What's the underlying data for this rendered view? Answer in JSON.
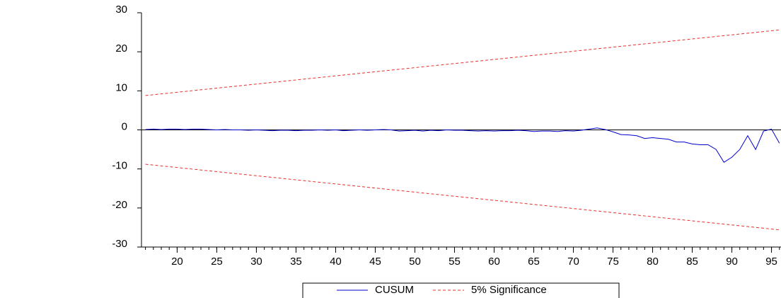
{
  "chart_data": {
    "type": "line",
    "series": [
      {
        "name": "CUSUM",
        "color": "#0000cc",
        "dash": false,
        "x": [
          16,
          17,
          18,
          19,
          20,
          21,
          22,
          23,
          24,
          25,
          26,
          27,
          28,
          29,
          30,
          31,
          32,
          33,
          34,
          35,
          36,
          37,
          38,
          39,
          40,
          41,
          42,
          43,
          44,
          45,
          46,
          47,
          48,
          49,
          50,
          51,
          52,
          53,
          54,
          55,
          56,
          57,
          58,
          59,
          60,
          61,
          62,
          63,
          64,
          65,
          66,
          67,
          68,
          69,
          70,
          71,
          72,
          73,
          74,
          75,
          76,
          77,
          78,
          79,
          80,
          81,
          82,
          83,
          84,
          85,
          86,
          87,
          88,
          89,
          90,
          91,
          92,
          93,
          94,
          95,
          96
        ],
        "values": [
          0.1,
          0.2,
          0.1,
          0.2,
          0.2,
          0.1,
          0.2,
          0.2,
          0.1,
          0.0,
          0.1,
          0.0,
          0.0,
          -0.1,
          0.0,
          -0.1,
          -0.2,
          -0.1,
          -0.1,
          -0.2,
          -0.1,
          -0.1,
          0.0,
          -0.1,
          0.0,
          -0.2,
          -0.1,
          0.0,
          -0.1,
          0.0,
          0.1,
          0.0,
          -0.3,
          -0.2,
          -0.1,
          -0.3,
          -0.1,
          -0.2,
          0.0,
          -0.1,
          -0.1,
          -0.2,
          -0.3,
          -0.2,
          -0.3,
          -0.2,
          -0.2,
          -0.1,
          -0.2,
          -0.4,
          -0.3,
          -0.3,
          -0.4,
          -0.2,
          -0.3,
          -0.1,
          0.2,
          0.5,
          0.1,
          -0.5,
          -1.2,
          -1.3,
          -1.5,
          -2.2,
          -2.0,
          -2.2,
          -2.4,
          -3.1,
          -3.1,
          -3.6,
          -3.8,
          -3.8,
          -5.0,
          -8.3,
          -7.0,
          -5.0,
          -1.5,
          -5.0,
          -0.3,
          0.2,
          -3.4
        ]
      },
      {
        "name": "5% Significance",
        "color": "#e8302a",
        "dash": true,
        "x": [
          16,
          96
        ],
        "values": [
          8.8,
          25.6
        ]
      },
      {
        "color": "#e8302a",
        "dash": true,
        "x": [
          16,
          96
        ],
        "values": [
          -8.8,
          -25.6
        ]
      }
    ],
    "xlim": [
      15.5,
      96.2
    ],
    "ylim": [
      -30,
      30
    ],
    "xticks": [
      20,
      25,
      30,
      35,
      40,
      45,
      50,
      55,
      60,
      65,
      70,
      75,
      80,
      85,
      90,
      95
    ],
    "yticks": [
      -30,
      -20,
      -10,
      0,
      10,
      20,
      30
    ],
    "hline": 0
  }
}
